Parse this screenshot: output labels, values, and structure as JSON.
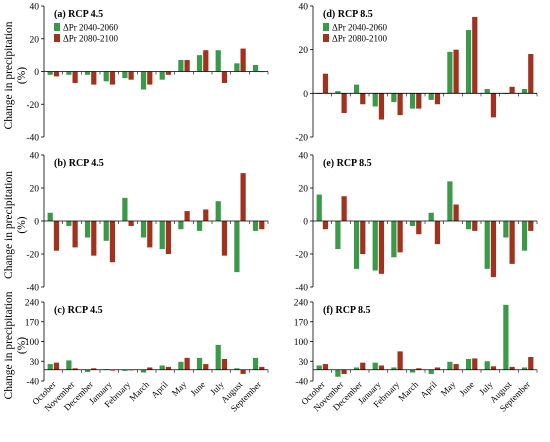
{
  "figure": {
    "ylabel_line1": "Change in precipitation",
    "ylabel_line2": "(%)",
    "months": [
      "October",
      "November",
      "December",
      "January",
      "February",
      "March",
      "April",
      "May",
      "June",
      "July",
      "August",
      "September"
    ],
    "legend": [
      {
        "label": "ΔPr 2040-2060",
        "color": "#3a9a4a"
      },
      {
        "label": "ΔPr 2080-2100",
        "color": "#a0321e"
      }
    ]
  },
  "chart_data": [
    {
      "id": "a",
      "type": "bar",
      "title": "(a) RCP 4.5",
      "has_legend": true,
      "categories": [
        "October",
        "November",
        "December",
        "January",
        "February",
        "March",
        "April",
        "May",
        "June",
        "July",
        "August",
        "September"
      ],
      "ylim": [
        -40,
        40
      ],
      "yticks": [
        -40,
        -20,
        0,
        20,
        40
      ],
      "series": [
        {
          "name": "ΔPr 2040-2060",
          "values": [
            -2,
            -2,
            -2,
            -6,
            -4,
            -11,
            -5,
            7,
            10,
            13,
            5,
            4
          ]
        },
        {
          "name": "ΔPr 2080-2100",
          "values": [
            -3,
            -7,
            -8,
            -8,
            -5,
            -8,
            -2,
            7,
            13,
            -7,
            14,
            0
          ]
        }
      ]
    },
    {
      "id": "b",
      "type": "bar",
      "title": "(b) RCP 4.5",
      "has_legend": false,
      "categories": [
        "October",
        "November",
        "December",
        "January",
        "February",
        "March",
        "April",
        "May",
        "June",
        "July",
        "August",
        "September"
      ],
      "ylim": [
        -40,
        40
      ],
      "yticks": [
        -40,
        -20,
        0,
        20,
        40
      ],
      "series": [
        {
          "name": "ΔPr 2040-2060",
          "values": [
            5,
            -3,
            -10,
            -12,
            14,
            -10,
            -17,
            -5,
            -6,
            12,
            -31,
            -6
          ]
        },
        {
          "name": "ΔPr 2080-2100",
          "values": [
            -18,
            -16,
            -21,
            -25,
            -3,
            -16,
            -20,
            6,
            7,
            -21,
            29,
            -5
          ]
        }
      ]
    },
    {
      "id": "c",
      "type": "bar",
      "title": "(c) RCP 4.5",
      "has_legend": false,
      "categories": [
        "October",
        "November",
        "December",
        "January",
        "February",
        "March",
        "April",
        "May",
        "June",
        "July",
        "August",
        "September"
      ],
      "ylim": [
        -40,
        240
      ],
      "yticks": [
        -40,
        30,
        100,
        170,
        240
      ],
      "series": [
        {
          "name": "ΔPr 2040-2060",
          "values": [
            20,
            33,
            -8,
            2,
            -4,
            -10,
            15,
            28,
            42,
            88,
            5,
            42
          ]
        },
        {
          "name": "ΔPr 2080-2100",
          "values": [
            25,
            5,
            5,
            -3,
            -2,
            8,
            10,
            42,
            20,
            38,
            -15,
            10
          ]
        }
      ]
    },
    {
      "id": "d",
      "type": "bar",
      "title": "(d) RCP 8.5",
      "has_legend": true,
      "categories": [
        "October",
        "November",
        "December",
        "January",
        "February",
        "March",
        "April",
        "May",
        "June",
        "July",
        "August",
        "September"
      ],
      "ylim": [
        -20,
        40
      ],
      "yticks": [
        -20,
        0,
        20,
        40
      ],
      "series": [
        {
          "name": "ΔPr 2040-2060",
          "values": [
            0,
            1,
            4,
            -6,
            -4,
            -7,
            -3,
            19,
            29,
            2,
            0,
            2
          ]
        },
        {
          "name": "ΔPr 2080-2100",
          "values": [
            9,
            -9,
            -5,
            -12,
            -10,
            -7,
            -5,
            20,
            35,
            -11,
            3,
            18
          ]
        }
      ]
    },
    {
      "id": "e",
      "type": "bar",
      "title": "(e) RCP 8.5",
      "has_legend": false,
      "categories": [
        "October",
        "November",
        "December",
        "January",
        "February",
        "March",
        "April",
        "May",
        "June",
        "July",
        "August",
        "September"
      ],
      "ylim": [
        -40,
        40
      ],
      "yticks": [
        -40,
        -20,
        0,
        20,
        40
      ],
      "series": [
        {
          "name": "ΔPr 2040-2060",
          "values": [
            16,
            -17,
            -29,
            -30,
            -22,
            -3,
            5,
            24,
            -5,
            -29,
            -10,
            -18
          ]
        },
        {
          "name": "ΔPr 2080-2100",
          "values": [
            -5,
            15,
            -20,
            -32,
            -19,
            -8,
            -14,
            10,
            -6,
            -34,
            -26,
            -6
          ]
        }
      ]
    },
    {
      "id": "f",
      "type": "bar",
      "title": "(f) RCP 8.5",
      "has_legend": false,
      "categories": [
        "October",
        "November",
        "December",
        "January",
        "February",
        "March",
        "April",
        "May",
        "June",
        "July",
        "August",
        "September"
      ],
      "ylim": [
        -40,
        240
      ],
      "yticks": [
        -40,
        30,
        100,
        170,
        240
      ],
      "series": [
        {
          "name": "ΔPr 2040-2060",
          "values": [
            15,
            -25,
            8,
            25,
            8,
            -10,
            -15,
            28,
            38,
            30,
            230,
            8
          ]
        },
        {
          "name": "ΔPr 2080-2100",
          "values": [
            20,
            -15,
            25,
            15,
            65,
            5,
            8,
            20,
            40,
            12,
            10,
            45
          ]
        }
      ]
    }
  ]
}
